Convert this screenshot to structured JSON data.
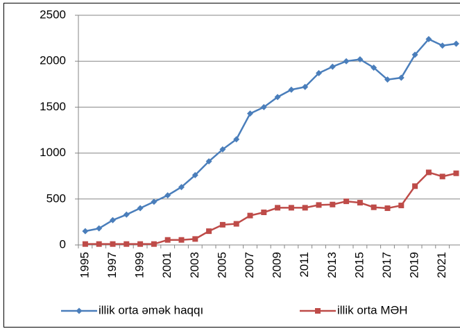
{
  "chart_data": {
    "type": "line",
    "categories": [
      "1995",
      null,
      "1997",
      null,
      "1999",
      null,
      "2001",
      null,
      "2003",
      null,
      "2005",
      null,
      "2007",
      null,
      "2009",
      null,
      "2011",
      null,
      "2013",
      null,
      "2015",
      null,
      "2017",
      null,
      "2019",
      null,
      "2021",
      null
    ],
    "series": [
      {
        "name": "illik orta əmək haqqı",
        "color": "#4a7ebb",
        "marker": "diamond",
        "values": [
          150,
          180,
          270,
          330,
          400,
          470,
          540,
          630,
          760,
          910,
          1040,
          1150,
          1430,
          1500,
          1610,
          1690,
          1720,
          1870,
          1940,
          2000,
          2020,
          1930,
          1800,
          1820,
          2070,
          2240,
          2170,
          2190
        ]
      },
      {
        "name": "illik orta MƏH",
        "color": "#be4b48",
        "marker": "square",
        "values": [
          10,
          10,
          10,
          10,
          10,
          10,
          55,
          55,
          65,
          150,
          220,
          230,
          320,
          355,
          405,
          405,
          405,
          435,
          440,
          475,
          460,
          410,
          400,
          430,
          640,
          790,
          745,
          780
        ]
      }
    ],
    "ylim": [
      0,
      2500
    ],
    "yticks": [
      0,
      500,
      1000,
      1500,
      2000,
      2500
    ],
    "grid": true,
    "legend": "bottom"
  }
}
